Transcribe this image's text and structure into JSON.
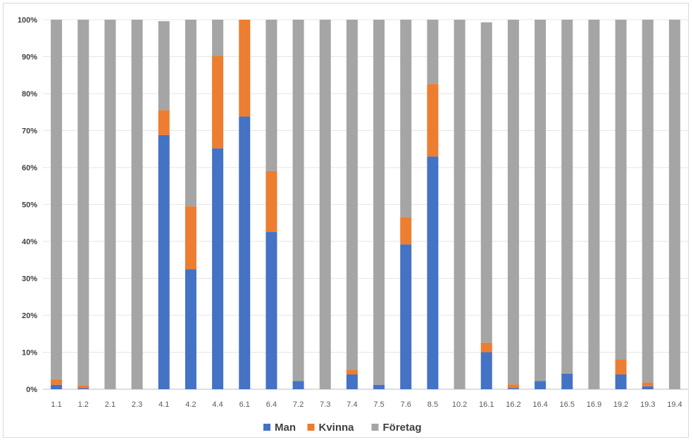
{
  "chart_data": {
    "type": "bar",
    "stacked": true,
    "percent_stacked": true,
    "categories": [
      "1.1",
      "1.2",
      "2.1",
      "2.3",
      "4.1",
      "4.2",
      "4.4",
      "6.1",
      "6.4",
      "7.2",
      "7.3",
      "7.4",
      "7.5",
      "7.6",
      "8.5",
      "10.2",
      "16.1",
      "16.2",
      "16.4",
      "16.5",
      "16.9",
      "19.2",
      "19.3",
      "19.4"
    ],
    "series": [
      {
        "name": "Man",
        "color": "#4472c4",
        "values": [
          1.2,
          0.3,
          0,
          0,
          68.8,
          32.5,
          65.2,
          73.8,
          42.6,
          2.2,
          0,
          4.0,
          1.2,
          39.2,
          63.0,
          0,
          10.0,
          0.3,
          2.2,
          4.2,
          0,
          4.0,
          0.8,
          0
        ]
      },
      {
        "name": "Kvinna",
        "color": "#ed7d31",
        "values": [
          1.5,
          0.8,
          0,
          0,
          6.7,
          17.0,
          25.0,
          26.2,
          16.5,
          0,
          0,
          1.3,
          0,
          7.4,
          19.6,
          0,
          2.6,
          1.0,
          0,
          0,
          0,
          4.0,
          1.0,
          0
        ]
      },
      {
        "name": "Företag",
        "color": "#a5a5a5",
        "values": [
          97.3,
          98.9,
          100,
          100,
          24.1,
          50.5,
          9.8,
          0,
          40.9,
          97.8,
          100,
          94.7,
          98.8,
          53.4,
          17.4,
          100,
          86.7,
          98.7,
          97.8,
          95.8,
          100,
          92.0,
          98.2,
          100
        ]
      }
    ],
    "ylim": [
      0,
      100
    ],
    "yticks": [
      "0%",
      "10%",
      "20%",
      "30%",
      "40%",
      "50%",
      "60%",
      "70%",
      "80%",
      "90%",
      "100%"
    ],
    "grid": true,
    "legend": "bottom",
    "xlabel": "",
    "ylabel": "",
    "title": ""
  }
}
